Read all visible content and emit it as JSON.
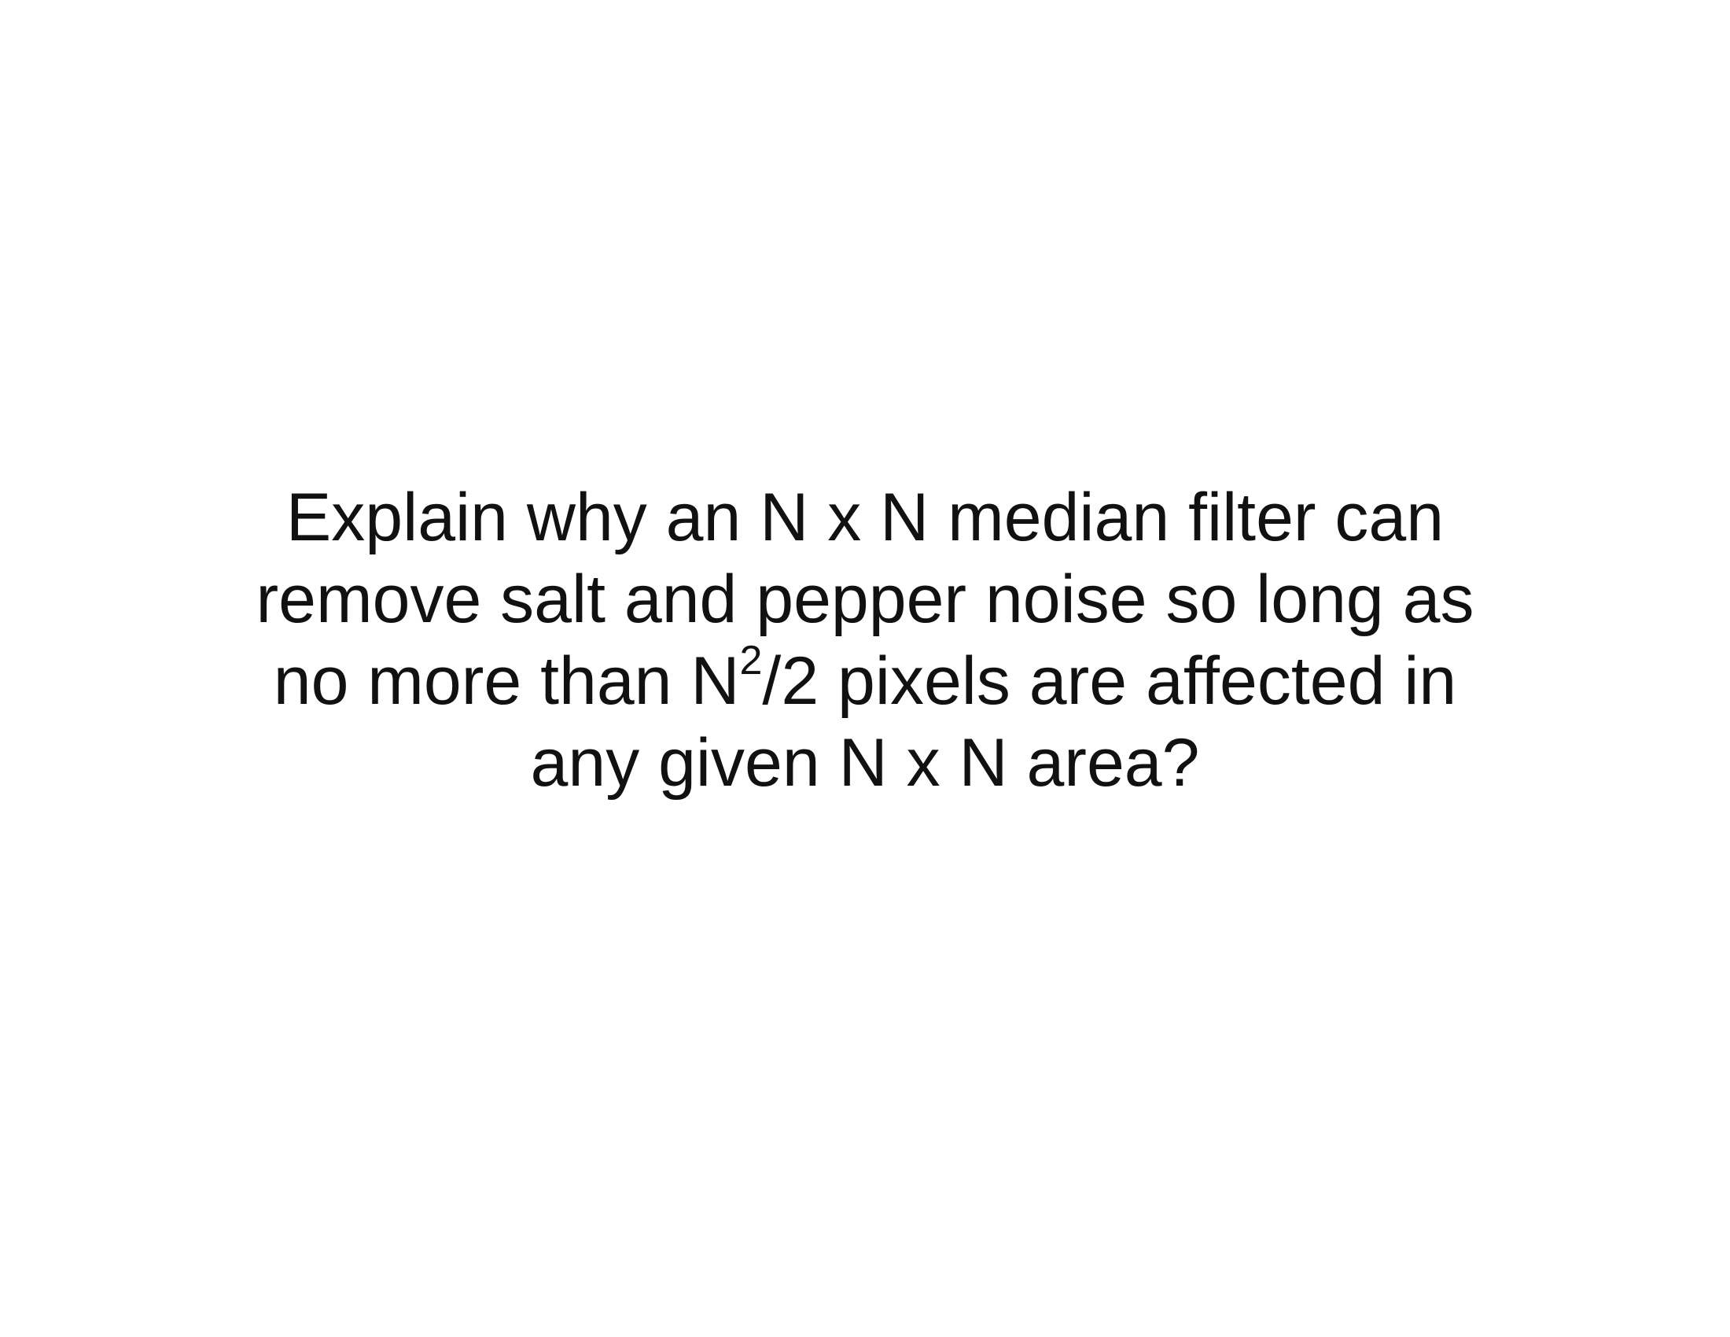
{
  "slide": {
    "question": {
      "line1": "Explain why an N x N median filter can",
      "line2": "remove salt and pepper noise so long as",
      "line3_prefix": "no more than N",
      "line3_superscript": "2",
      "line3_suffix": "/2 pixels are affected in",
      "line4": "any given N x N area?"
    }
  }
}
